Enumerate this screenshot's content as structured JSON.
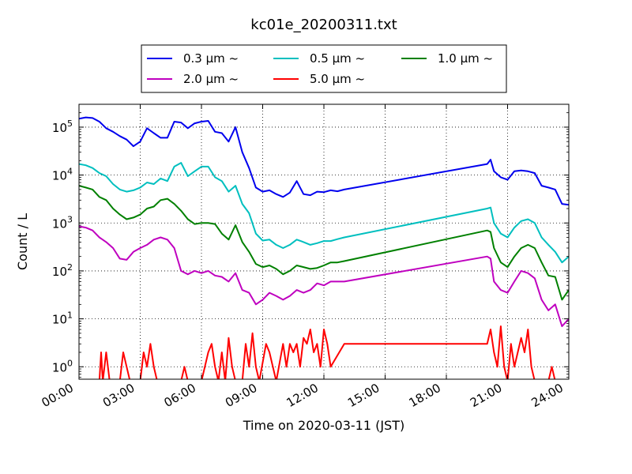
{
  "chart_data": {
    "type": "line",
    "title": "kc01e_20200311.txt",
    "xlabel": "Time on 2020-03-11 (JST)",
    "ylabel": "Count / L",
    "y_scale": "log",
    "grid": true,
    "legend_position": "top-center",
    "x_tick_labels": [
      "00:00",
      "03:00",
      "06:00",
      "09:00",
      "12:00",
      "15:00",
      "18:00",
      "21:00",
      "24:00"
    ],
    "y_tick_labels": [
      {
        "base": "10",
        "exp": "0",
        "value": 1
      },
      {
        "base": "10",
        "exp": "1",
        "value": 10
      },
      {
        "base": "10",
        "exp": "2",
        "value": 100
      },
      {
        "base": "10",
        "exp": "3",
        "value": 1000
      },
      {
        "base": "10",
        "exp": "4",
        "value": 10000
      },
      {
        "base": "10",
        "exp": "5",
        "value": 100000
      }
    ],
    "xlim": [
      "00:00",
      "24:00"
    ],
    "ylim": [
      0.55,
      300000
    ],
    "series": [
      {
        "name": "0.3 μm ~",
        "color": "#0000ee",
        "points": [
          [
            "00:00",
            150000
          ],
          [
            "00:20",
            160000
          ],
          [
            "00:40",
            155000
          ],
          [
            "01:00",
            130000
          ],
          [
            "01:20",
            95000
          ],
          [
            "01:40",
            80000
          ],
          [
            "02:00",
            65000
          ],
          [
            "02:20",
            55000
          ],
          [
            "02:40",
            40000
          ],
          [
            "03:00",
            50000
          ],
          [
            "03:20",
            95000
          ],
          [
            "03:40",
            75000
          ],
          [
            "04:00",
            60000
          ],
          [
            "04:20",
            60000
          ],
          [
            "04:40",
            130000
          ],
          [
            "05:00",
            125000
          ],
          [
            "05:20",
            95000
          ],
          [
            "05:40",
            120000
          ],
          [
            "06:00",
            130000
          ],
          [
            "06:20",
            135000
          ],
          [
            "06:40",
            80000
          ],
          [
            "07:00",
            75000
          ],
          [
            "07:20",
            50000
          ],
          [
            "07:40",
            100000
          ],
          [
            "08:00",
            30000
          ],
          [
            "08:20",
            14000
          ],
          [
            "08:40",
            5500
          ],
          [
            "09:00",
            4500
          ],
          [
            "09:20",
            4800
          ],
          [
            "09:40",
            4000
          ],
          [
            "10:00",
            3500
          ],
          [
            "10:20",
            4300
          ],
          [
            "10:40",
            7500
          ],
          [
            "11:00",
            4000
          ],
          [
            "11:20",
            3800
          ],
          [
            "11:40",
            4500
          ],
          [
            "12:00",
            4400
          ],
          [
            "12:20",
            4800
          ],
          [
            "12:40",
            4600
          ],
          [
            "13:00",
            5000
          ],
          [
            "20:00",
            17000
          ],
          [
            "20:10",
            21000
          ],
          [
            "20:20",
            12000
          ],
          [
            "20:40",
            9000
          ],
          [
            "21:00",
            8000
          ],
          [
            "21:20",
            12000
          ],
          [
            "21:40",
            12500
          ],
          [
            "22:00",
            12000
          ],
          [
            "22:20",
            11000
          ],
          [
            "22:40",
            6000
          ],
          [
            "23:00",
            5500
          ],
          [
            "23:20",
            5000
          ],
          [
            "23:40",
            2500
          ],
          [
            "24:00",
            2400
          ]
        ]
      },
      {
        "name": "0.5 μm ~",
        "color": "#00bfbf",
        "points": [
          [
            "00:00",
            17000
          ],
          [
            "00:20",
            16000
          ],
          [
            "00:40",
            14000
          ],
          [
            "01:00",
            11000
          ],
          [
            "01:20",
            9500
          ],
          [
            "01:40",
            6500
          ],
          [
            "02:00",
            5000
          ],
          [
            "02:20",
            4500
          ],
          [
            "02:40",
            4800
          ],
          [
            "03:00",
            5500
          ],
          [
            "03:20",
            7000
          ],
          [
            "03:40",
            6500
          ],
          [
            "04:00",
            8500
          ],
          [
            "04:20",
            7500
          ],
          [
            "04:40",
            15000
          ],
          [
            "05:00",
            18000
          ],
          [
            "05:20",
            9500
          ],
          [
            "05:40",
            12000
          ],
          [
            "06:00",
            15000
          ],
          [
            "06:20",
            15000
          ],
          [
            "06:40",
            9000
          ],
          [
            "07:00",
            7500
          ],
          [
            "07:20",
            4500
          ],
          [
            "07:40",
            6000
          ],
          [
            "08:00",
            2500
          ],
          [
            "08:20",
            1600
          ],
          [
            "08:40",
            600
          ],
          [
            "09:00",
            430
          ],
          [
            "09:20",
            450
          ],
          [
            "09:40",
            350
          ],
          [
            "10:00",
            300
          ],
          [
            "10:20",
            350
          ],
          [
            "10:40",
            450
          ],
          [
            "11:00",
            400
          ],
          [
            "11:20",
            350
          ],
          [
            "11:40",
            380
          ],
          [
            "12:00",
            420
          ],
          [
            "12:20",
            420
          ],
          [
            "12:40",
            460
          ],
          [
            "13:00",
            500
          ],
          [
            "20:00",
            2000
          ],
          [
            "20:10",
            2100
          ],
          [
            "20:20",
            1000
          ],
          [
            "20:40",
            600
          ],
          [
            "21:00",
            500
          ],
          [
            "21:20",
            800
          ],
          [
            "21:40",
            1100
          ],
          [
            "22:00",
            1200
          ],
          [
            "22:20",
            1000
          ],
          [
            "22:40",
            500
          ],
          [
            "23:00",
            350
          ],
          [
            "23:20",
            250
          ],
          [
            "23:40",
            150
          ],
          [
            "24:00",
            200
          ]
        ]
      },
      {
        "name": "1.0 μm ~",
        "color": "#008000",
        "points": [
          [
            "00:00",
            6000
          ],
          [
            "00:20",
            5500
          ],
          [
            "00:40",
            5000
          ],
          [
            "01:00",
            3500
          ],
          [
            "01:20",
            3000
          ],
          [
            "01:40",
            2000
          ],
          [
            "02:00",
            1500
          ],
          [
            "02:20",
            1200
          ],
          [
            "02:40",
            1300
          ],
          [
            "03:00",
            1500
          ],
          [
            "03:20",
            2000
          ],
          [
            "03:40",
            2200
          ],
          [
            "04:00",
            3000
          ],
          [
            "04:20",
            3200
          ],
          [
            "04:40",
            2500
          ],
          [
            "05:00",
            1800
          ],
          [
            "05:20",
            1200
          ],
          [
            "05:40",
            950
          ],
          [
            "06:00",
            1000
          ],
          [
            "06:20",
            1000
          ],
          [
            "06:40",
            950
          ],
          [
            "07:00",
            600
          ],
          [
            "07:20",
            450
          ],
          [
            "07:40",
            900
          ],
          [
            "08:00",
            400
          ],
          [
            "08:20",
            250
          ],
          [
            "08:40",
            140
          ],
          [
            "09:00",
            120
          ],
          [
            "09:20",
            130
          ],
          [
            "09:40",
            110
          ],
          [
            "10:00",
            85
          ],
          [
            "10:20",
            100
          ],
          [
            "10:40",
            130
          ],
          [
            "11:00",
            120
          ],
          [
            "11:20",
            110
          ],
          [
            "11:40",
            115
          ],
          [
            "12:00",
            130
          ],
          [
            "12:20",
            150
          ],
          [
            "12:40",
            150
          ],
          [
            "13:00",
            160
          ],
          [
            "20:00",
            700
          ],
          [
            "20:10",
            650
          ],
          [
            "20:20",
            300
          ],
          [
            "20:40",
            150
          ],
          [
            "21:00",
            120
          ],
          [
            "21:20",
            200
          ],
          [
            "21:40",
            300
          ],
          [
            "22:00",
            350
          ],
          [
            "22:20",
            300
          ],
          [
            "22:40",
            150
          ],
          [
            "23:00",
            80
          ],
          [
            "23:20",
            75
          ],
          [
            "23:40",
            25
          ],
          [
            "24:00",
            40
          ]
        ]
      },
      {
        "name": "2.0 μm ~",
        "color": "#bf00bf",
        "points": [
          [
            "00:00",
            850
          ],
          [
            "00:20",
            800
          ],
          [
            "00:40",
            700
          ],
          [
            "01:00",
            500
          ],
          [
            "01:20",
            400
          ],
          [
            "01:40",
            300
          ],
          [
            "02:00",
            180
          ],
          [
            "02:20",
            170
          ],
          [
            "02:40",
            250
          ],
          [
            "03:00",
            300
          ],
          [
            "03:20",
            350
          ],
          [
            "03:40",
            450
          ],
          [
            "04:00",
            500
          ],
          [
            "04:20",
            450
          ],
          [
            "04:40",
            300
          ],
          [
            "05:00",
            100
          ],
          [
            "05:20",
            85
          ],
          [
            "05:40",
            100
          ],
          [
            "06:00",
            90
          ],
          [
            "06:20",
            100
          ],
          [
            "06:40",
            80
          ],
          [
            "07:00",
            75
          ],
          [
            "07:20",
            60
          ],
          [
            "07:40",
            90
          ],
          [
            "08:00",
            40
          ],
          [
            "08:20",
            35
          ],
          [
            "08:40",
            20
          ],
          [
            "09:00",
            25
          ],
          [
            "09:20",
            35
          ],
          [
            "09:40",
            30
          ],
          [
            "10:00",
            25
          ],
          [
            "10:20",
            30
          ],
          [
            "10:40",
            40
          ],
          [
            "11:00",
            35
          ],
          [
            "11:20",
            40
          ],
          [
            "11:40",
            55
          ],
          [
            "12:00",
            50
          ],
          [
            "12:20",
            60
          ],
          [
            "12:40",
            60
          ],
          [
            "13:00",
            60
          ],
          [
            "20:00",
            200
          ],
          [
            "20:10",
            180
          ],
          [
            "20:20",
            60
          ],
          [
            "20:40",
            40
          ],
          [
            "21:00",
            35
          ],
          [
            "21:20",
            60
          ],
          [
            "21:40",
            100
          ],
          [
            "22:00",
            90
          ],
          [
            "22:20",
            70
          ],
          [
            "22:40",
            25
          ],
          [
            "23:00",
            15
          ],
          [
            "23:20",
            20
          ],
          [
            "23:40",
            7
          ],
          [
            "24:00",
            10
          ]
        ]
      },
      {
        "name": "5.0 μm ~",
        "color": "#ff0000",
        "points": [
          [
            "00:00",
            0.5
          ],
          [
            "01:00",
            0.5
          ],
          [
            "01:05",
            2
          ],
          [
            "01:10",
            0.5
          ],
          [
            "01:20",
            2
          ],
          [
            "01:30",
            0.5
          ],
          [
            "02:00",
            0.5
          ],
          [
            "02:05",
            1
          ],
          [
            "02:10",
            2
          ],
          [
            "02:20",
            1
          ],
          [
            "02:30",
            0.5
          ],
          [
            "03:00",
            0.5
          ],
          [
            "03:10",
            2
          ],
          [
            "03:20",
            1
          ],
          [
            "03:30",
            3
          ],
          [
            "03:40",
            1
          ],
          [
            "03:50",
            0.5
          ],
          [
            "05:00",
            0.5
          ],
          [
            "05:10",
            1
          ],
          [
            "05:20",
            0.5
          ],
          [
            "06:00",
            0.5
          ],
          [
            "06:10",
            1
          ],
          [
            "06:20",
            2
          ],
          [
            "06:30",
            3
          ],
          [
            "06:40",
            1
          ],
          [
            "06:50",
            0.5
          ],
          [
            "07:00",
            2
          ],
          [
            "07:10",
            0.5
          ],
          [
            "07:20",
            4
          ],
          [
            "07:30",
            1
          ],
          [
            "07:40",
            0.5
          ],
          [
            "08:00",
            0.5
          ],
          [
            "08:10",
            3
          ],
          [
            "08:20",
            1
          ],
          [
            "08:30",
            5
          ],
          [
            "08:40",
            1
          ],
          [
            "08:50",
            0.5
          ],
          [
            "09:10",
            3
          ],
          [
            "09:20",
            2
          ],
          [
            "09:30",
            1
          ],
          [
            "09:40",
            0.5
          ],
          [
            "10:00",
            3
          ],
          [
            "10:10",
            1
          ],
          [
            "10:20",
            3
          ],
          [
            "10:30",
            2
          ],
          [
            "10:40",
            3
          ],
          [
            "10:50",
            1
          ],
          [
            "11:00",
            4
          ],
          [
            "11:10",
            3
          ],
          [
            "11:20",
            6
          ],
          [
            "11:30",
            2
          ],
          [
            "11:40",
            3
          ],
          [
            "11:50",
            1
          ],
          [
            "12:00",
            6
          ],
          [
            "12:10",
            3
          ],
          [
            "12:20",
            1
          ],
          [
            "13:00",
            3
          ],
          [
            "20:00",
            3
          ],
          [
            "20:10",
            6
          ],
          [
            "20:20",
            2
          ],
          [
            "20:30",
            1
          ],
          [
            "20:40",
            7
          ],
          [
            "20:50",
            1
          ],
          [
            "21:00",
            0.5
          ],
          [
            "21:10",
            3
          ],
          [
            "21:20",
            1
          ],
          [
            "21:30",
            2
          ],
          [
            "21:40",
            4
          ],
          [
            "21:50",
            2
          ],
          [
            "22:00",
            6
          ],
          [
            "22:10",
            1
          ],
          [
            "22:20",
            0.5
          ],
          [
            "23:00",
            0.5
          ],
          [
            "23:10",
            1
          ],
          [
            "23:20",
            0.5
          ],
          [
            "24:00",
            0.5
          ]
        ]
      }
    ]
  }
}
